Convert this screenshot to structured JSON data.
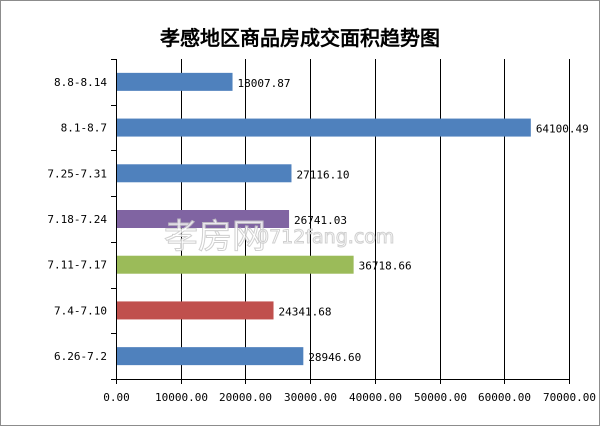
{
  "chart_data": {
    "type": "bar",
    "orientation": "horizontal",
    "title": "孝感地区商品房成交面积趋势图",
    "categories": [
      "8.8-8.14",
      "8.1-8.7",
      "7.25-7.31",
      "7.18-7.24",
      "7.11-7.17",
      "7.4-7.10",
      "6.26-7.2"
    ],
    "values": [
      18007.87,
      64100.49,
      27116.1,
      26741.03,
      36718.66,
      24341.68,
      28946.6
    ],
    "value_labels": [
      "18007.87",
      "64100.49",
      "27116.10",
      "26741.03",
      "36718.66",
      "24341.68",
      "28946.60"
    ],
    "bar_colors": [
      "#4f81bd",
      "#4f81bd",
      "#4f81bd",
      "#8064a2",
      "#9bbb59",
      "#c0504d",
      "#4f81bd"
    ],
    "xlim": [
      0,
      70000
    ],
    "x_ticks": [
      0,
      10000,
      20000,
      30000,
      40000,
      50000,
      60000,
      70000
    ],
    "x_tick_labels": [
      "0.00",
      "10000.00",
      "20000.00",
      "30000.00",
      "40000.00",
      "50000.00",
      "60000.00",
      "70000.00"
    ],
    "grid": "vertical",
    "xlabel": "",
    "ylabel": ""
  },
  "watermark": {
    "main": "孝房网",
    "sub": "0712fang.com"
  }
}
